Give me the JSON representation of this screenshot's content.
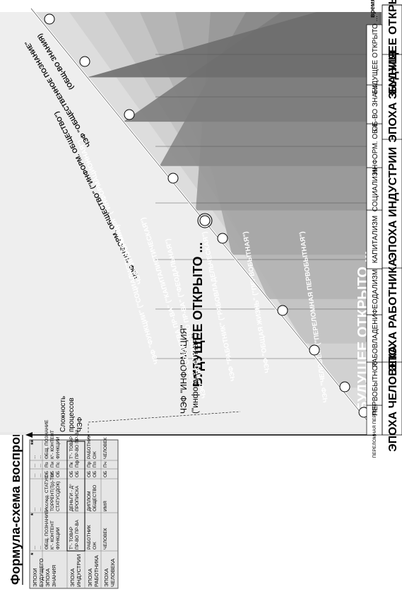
{
  "title": "Формула-схема воспроизводственного процесса по ЧЭФ",
  "y_axis_label": [
    "Сложность",
    "процессов",
    "ЧЭФ"
  ],
  "time_label": "время",
  "future_labels": {
    "top": "БУДУЩЕЕ ОТКРЫТО ...",
    "middle": "БУДУЩЕЕ ОТКРЫТО ...",
    "bottom": "БУДУЩЕЕ ОТКРЫТО ..."
  },
  "info_label": {
    "line1": "ЧЭФ \"ИНФОРМАЦИЯ\"",
    "line2": "(\"информационная\")"
  },
  "diagonal_labels": [
    "ЧЭФ \"ОБЩЕСТВЕННОЕ ПОЗНАНИЕ\"",
    "(ОБЩ-ВО ЗНАНИЯ)",
    "ЧЭФ \"ИНФОРМ. ОБЩЕСТВО\" (\"ИНФОРМ. ОБЩЕСТВО\")",
    "ЧЭФ \"ИНФОРМАЦИЯ\" (\"ИНФОРМАЦИОННАЯ\")",
    "ЧЭФ \"ФУНКЦИИ\" (\"СОЦИАЛИСТИЧЕСКАЯ\")",
    "ЧЭФ \"СРЕДСТВА ПР-ВА\" (\"КАПИТАЛИСТИЧЕСКАЯ\")",
    "ЧЭФ \"ПРОСТРАНСТВО ПР-ВА\" (\"ФЕОДАЛЬНАЯ\")",
    "ЧЭФ \"РАБОТНИК\" (\"РАБОВЛАДЕЛЬЧЕСКАЯ\")",
    "ЧЭФ \"ОБЩАЯ ЖИЗНЬ\" (\"ПЕРВОБЫТНАЯ\")",
    "ЧЭФ \"ЧЕЛОВЕК\" (\"ПЕРЕЛОМНАЯ ПЕРВОБЫТНАЯ\")"
  ],
  "formations": [
    "ПЕРЕЛОМНАЯ ПЕРВОБЫТНОСТЬ",
    "ПЕРВОБЫТНОСТЬ",
    "РАБОВЛАДЕНИЕ",
    "ФЕОДАЛИЗМ",
    "КАПИТАЛИЗМ",
    "СОЦИАЛИЗМ",
    "ИНФОРМ. ОБ-ВО",
    "ОБ-ВО ЗНАНИЯ",
    "БУДУЩЕЕ ОТКРЫТО ..."
  ],
  "epochs": [
    "ЭПОХА ЧЕЛОВЕКА",
    "ЭПОХА РАБОТНИКА",
    "ЭПОХА ИНДУСТРИИ",
    "ЭПОХА ЗНАНИЯ",
    "БУДУЩЕЕ ОТКРЫТО ..."
  ],
  "table": {
    "row_labels": [
      "ЭПОХИ БУДУЩЕГО",
      "ЭПОХА ЗНАНИЯ",
      "ЭПОХА ИНДУСТРИИ",
      "ЭПОХА РАБОТНИКА",
      "ЭПОХА ЧЕЛОВЕКА"
    ],
    "stars": [
      "*",
      "*",
      "**"
    ],
    "col1": [
      [
        "...",
        "...",
        "..."
      ],
      [
        "ОБЩ. ПОЗНАНИЕ",
        "К°- КОНТЕНТ",
        "ФУНКЦИИ"
      ],
      [
        "Т°- ТОВАР",
        "ПР-ВО ПР-ВА"
      ],
      [
        "РАБОТНИК",
        "ОЖ"
      ],
      [
        "ЧЕЛОВЕК"
      ]
    ],
    "col2": [
      [
        "...",
        "...",
        "..."
      ],
      [
        "Исслед. СТАТУС",
        "ТОРРЕНТ(Тр)-ТR°",
        "СТАТУС(ДОК)"
      ],
      [
        "ДЕНЬГИ - Д°",
        "ПРОПИСКА"
      ],
      [
        "ДИПЛОМ",
        "ОБЩЕСТВО"
      ],
      [
        "ИМЯ"
      ]
    ],
    "col3": [
      [
        "...",
        "...",
        "..."
      ],
      [
        "ОБ",
        "ОБ",
        "ОБ"
      ],
      [
        "ОБ",
        "ОБ"
      ],
      [
        "ОБ",
        "ОБ"
      ],
      [
        "ОБ"
      ]
    ],
    "col4": [
      [
        "...",
        "...",
        "..."
      ],
      [
        "Пз",
        "Пи",
        "Пс"
      ],
      [
        "Пк",
        "Пф"
      ],
      [
        "Пр",
        "Пп"
      ],
      [
        "Пч"
      ]
    ],
    "col5": [
      [
        "...",
        "...",
        "..."
      ],
      [
        "ОБЩ. ПОЗНАНИЕ",
        "К°- КОНТЕНТ",
        "ФУНКЦИИ"
      ],
      [
        "Т°- ТОВАР",
        "ПР-ВО ПР-ВА"
      ],
      [
        "РАБОТНИК",
        "ОЖ"
      ],
      [
        "ЧЕЛОВЕК"
      ]
    ]
  }
}
